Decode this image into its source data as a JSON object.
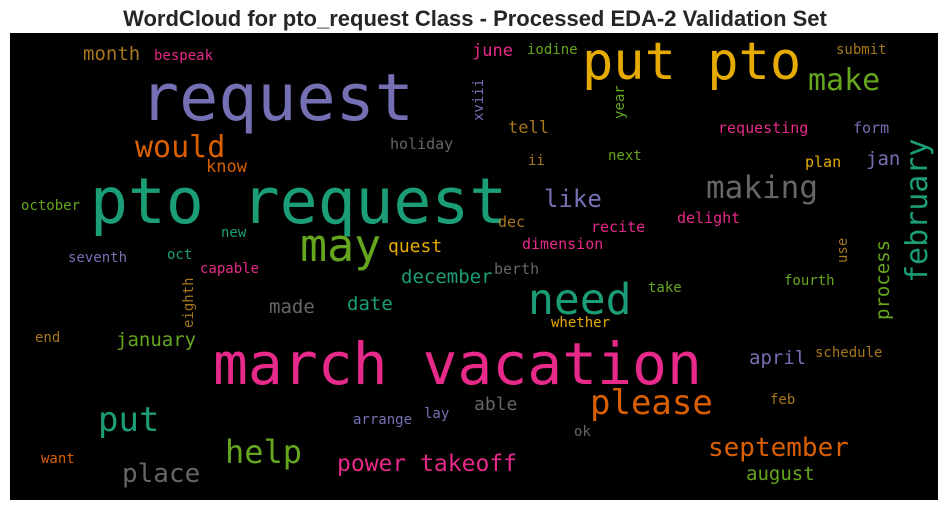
{
  "chart_data": {
    "type": "wordcloud",
    "title": "WordCloud for pto_request Class - Processed EDA-2 Validation Set",
    "words": [
      {
        "text": "request",
        "color": "#7570b3"
      },
      {
        "text": "put pto",
        "color": "#e6ab02"
      },
      {
        "text": "pto request",
        "color": "#1b9e77"
      },
      {
        "text": "march vacation",
        "color": "#e7298a"
      },
      {
        "text": "may",
        "color": "#66a61e"
      },
      {
        "text": "need",
        "color": "#1b9e77"
      },
      {
        "text": "make",
        "color": "#66a61e"
      },
      {
        "text": "making",
        "color": "#666666"
      },
      {
        "text": "february",
        "color": "#1b9e77"
      },
      {
        "text": "please",
        "color": "#d95f02"
      },
      {
        "text": "would",
        "color": "#d95f02"
      },
      {
        "text": "put",
        "color": "#1b9e77"
      },
      {
        "text": "help",
        "color": "#66a61e"
      },
      {
        "text": "september",
        "color": "#d95f02"
      },
      {
        "text": "power takeoff",
        "color": "#e7298a"
      },
      {
        "text": "place",
        "color": "#666666"
      },
      {
        "text": "like",
        "color": "#7570b3"
      },
      {
        "text": "process",
        "color": "#66a61e"
      },
      {
        "text": "december",
        "color": "#1b9e77"
      },
      {
        "text": "january",
        "color": "#66a61e"
      },
      {
        "text": "date",
        "color": "#1b9e77"
      },
      {
        "text": "made",
        "color": "#666666"
      },
      {
        "text": "april",
        "color": "#7570b3"
      },
      {
        "text": "august",
        "color": "#66a61e"
      },
      {
        "text": "month",
        "color": "#a6761d"
      },
      {
        "text": "june",
        "color": "#e7298a"
      },
      {
        "text": "tell",
        "color": "#a6761d"
      },
      {
        "text": "know",
        "color": "#d95f02"
      },
      {
        "text": "jan",
        "color": "#7570b3"
      },
      {
        "text": "quest",
        "color": "#e6ab02"
      },
      {
        "text": "able",
        "color": "#666666"
      },
      {
        "text": "bespeak",
        "color": "#e7298a"
      },
      {
        "text": "iodine",
        "color": "#66a61e"
      },
      {
        "text": "submit",
        "color": "#a6761d"
      },
      {
        "text": "xviii",
        "color": "#7570b3"
      },
      {
        "text": "year",
        "color": "#66a61e"
      },
      {
        "text": "requesting",
        "color": "#e7298a"
      },
      {
        "text": "form",
        "color": "#7570b3"
      },
      {
        "text": "holiday",
        "color": "#666666"
      },
      {
        "text": "ii",
        "color": "#a6761d"
      },
      {
        "text": "next",
        "color": "#66a61e"
      },
      {
        "text": "plan",
        "color": "#e6ab02"
      },
      {
        "text": "october",
        "color": "#66a61e"
      },
      {
        "text": "dec",
        "color": "#a6761d"
      },
      {
        "text": "recite",
        "color": "#e7298a"
      },
      {
        "text": "delight",
        "color": "#e7298a"
      },
      {
        "text": "dimension",
        "color": "#e7298a"
      },
      {
        "text": "new",
        "color": "#1b9e77"
      },
      {
        "text": "oct",
        "color": "#1b9e77"
      },
      {
        "text": "seventh",
        "color": "#7570b3"
      },
      {
        "text": "capable",
        "color": "#e7298a"
      },
      {
        "text": "berth",
        "color": "#666666"
      },
      {
        "text": "use",
        "color": "#a6761d"
      },
      {
        "text": "eighth",
        "color": "#a6761d"
      },
      {
        "text": "take",
        "color": "#66a61e"
      },
      {
        "text": "fourth",
        "color": "#66a61e"
      },
      {
        "text": "whether",
        "color": "#e6ab02"
      },
      {
        "text": "end",
        "color": "#a6761d"
      },
      {
        "text": "schedule",
        "color": "#a6761d"
      },
      {
        "text": "arrange",
        "color": "#7570b3"
      },
      {
        "text": "lay",
        "color": "#7570b3"
      },
      {
        "text": "feb",
        "color": "#a6761d"
      },
      {
        "text": "ok",
        "color": "#666666"
      },
      {
        "text": "want",
        "color": "#d95f02"
      }
    ]
  }
}
